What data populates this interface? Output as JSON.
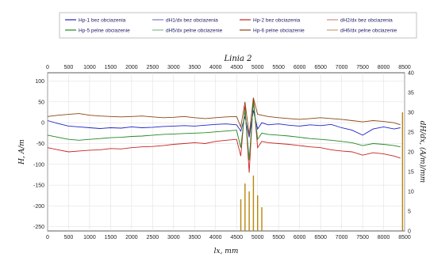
{
  "chart_data": {
    "type": "line",
    "title": "Linia 2",
    "xlabel": "lx, mm",
    "ylabel_left": "H, A/m",
    "ylabel_right": "dH/dx, (A/m)/mm",
    "xlim": [
      0,
      8500
    ],
    "ylim_left": [
      -260,
      120
    ],
    "ylim_right": [
      0,
      40
    ],
    "x_ticks": [
      0,
      500,
      1000,
      1500,
      2000,
      2500,
      3000,
      3500,
      4000,
      4500,
      5000,
      5500,
      6000,
      6500,
      7000,
      7500,
      8000,
      8500
    ],
    "y_ticks_left": [
      100,
      50,
      0,
      -50,
      -100,
      -150,
      -200,
      -250
    ],
    "y_ticks_right": [
      40,
      35,
      30,
      25,
      20,
      15,
      10,
      5,
      0
    ],
    "grid": true,
    "legend_position": "top",
    "legend": [
      {
        "name": "Hp-1 bez obciazenia",
        "color": "#2222cc"
      },
      {
        "name": "dH1/dx bez obciazenia",
        "color": "#7777dd"
      },
      {
        "name": "Hp-2 bez obciazenia",
        "color": "#cc2222"
      },
      {
        "name": "dH2/dx bez obciazenia",
        "color": "#dd8888"
      },
      {
        "name": "Hp-5 pelne obciazenie",
        "color": "#228822"
      },
      {
        "name": "dH5/dx pelne obciazenie",
        "color": "#88bb88"
      },
      {
        "name": "Hp-6 pelne obciazenie",
        "color": "#8b4513"
      },
      {
        "name": "dH6/dx pelne obciazenie",
        "color": "#c8a070"
      }
    ],
    "series": [
      {
        "name": "Hp-1 bez obciazenia",
        "color": "#2222cc",
        "axis": "left",
        "x": [
          0,
          250,
          500,
          750,
          1000,
          1250,
          1500,
          1750,
          2000,
          2250,
          2500,
          2750,
          3000,
          3250,
          3500,
          3750,
          4000,
          4250,
          4500,
          4600,
          4700,
          4800,
          4900,
          5000,
          5100,
          5250,
          5500,
          5750,
          6000,
          6250,
          6500,
          6750,
          7000,
          7250,
          7500,
          7750,
          8000,
          8250,
          8400
        ],
        "y": [
          5,
          -2,
          -8,
          -10,
          -12,
          -14,
          -12,
          -13,
          -10,
          -12,
          -11,
          -9,
          -8,
          -7,
          -8,
          -6,
          -4,
          -3,
          -5,
          -20,
          15,
          -35,
          30,
          -15,
          0,
          -5,
          -3,
          -6,
          -8,
          -5,
          -7,
          -4,
          -12,
          -18,
          -30,
          -15,
          -10,
          -15,
          -12
        ]
      },
      {
        "name": "Hp-2 bez obciazenia",
        "color": "#cc2222",
        "axis": "left",
        "x": [
          0,
          250,
          500,
          750,
          1000,
          1250,
          1500,
          1750,
          2000,
          2250,
          2500,
          2750,
          3000,
          3250,
          3500,
          3750,
          4000,
          4250,
          4500,
          4600,
          4700,
          4800,
          4900,
          5000,
          5100,
          5250,
          5500,
          5750,
          6000,
          6250,
          6500,
          6750,
          7000,
          7250,
          7500,
          7750,
          8000,
          8250,
          8400
        ],
        "y": [
          -60,
          -65,
          -70,
          -68,
          -66,
          -65,
          -62,
          -63,
          -60,
          -58,
          -57,
          -55,
          -52,
          -50,
          -48,
          -50,
          -45,
          -42,
          -40,
          -80,
          40,
          -120,
          60,
          -60,
          -45,
          -48,
          -50,
          -52,
          -55,
          -58,
          -60,
          -65,
          -68,
          -70,
          -78,
          -72,
          -75,
          -80,
          -85
        ]
      },
      {
        "name": "Hp-5 pelne obciazenie",
        "color": "#228822",
        "axis": "left",
        "x": [
          0,
          250,
          500,
          750,
          1000,
          1250,
          1500,
          1750,
          2000,
          2250,
          2500,
          2750,
          3000,
          3250,
          3500,
          3750,
          4000,
          4250,
          4500,
          4600,
          4700,
          4800,
          4900,
          5000,
          5100,
          5250,
          5500,
          5750,
          6000,
          6250,
          6500,
          6750,
          7000,
          7250,
          7500,
          7750,
          8000,
          8250,
          8400
        ],
        "y": [
          -30,
          -35,
          -40,
          -42,
          -40,
          -38,
          -36,
          -35,
          -33,
          -32,
          -30,
          -28,
          -27,
          -26,
          -25,
          -24,
          -22,
          -20,
          -18,
          -60,
          30,
          -90,
          50,
          -40,
          -25,
          -28,
          -30,
          -32,
          -35,
          -38,
          -40,
          -42,
          -45,
          -48,
          -55,
          -50,
          -52,
          -55,
          -58
        ]
      },
      {
        "name": "Hp-6 pelne obciazenie",
        "color": "#8b4513",
        "axis": "left",
        "x": [
          0,
          250,
          500,
          750,
          1000,
          1250,
          1500,
          1750,
          2000,
          2250,
          2500,
          2750,
          3000,
          3250,
          3500,
          3750,
          4000,
          4250,
          4500,
          4600,
          4700,
          4800,
          4900,
          5000,
          5100,
          5250,
          5500,
          5750,
          6000,
          6250,
          6500,
          6750,
          7000,
          7250,
          7500,
          7750,
          8000,
          8250,
          8400
        ],
        "y": [
          15,
          18,
          20,
          22,
          18,
          16,
          15,
          14,
          15,
          16,
          14,
          12,
          13,
          15,
          12,
          10,
          12,
          14,
          15,
          -10,
          50,
          -30,
          60,
          20,
          18,
          15,
          12,
          10,
          8,
          10,
          12,
          10,
          8,
          5,
          2,
          5,
          3,
          0,
          -5
        ]
      }
    ],
    "spikes_right_axis": [
      {
        "x": 4600,
        "y": 8
      },
      {
        "x": 4700,
        "y": 12
      },
      {
        "x": 4800,
        "y": 10
      },
      {
        "x": 4900,
        "y": 14
      },
      {
        "x": 5000,
        "y": 9
      },
      {
        "x": 5100,
        "y": 6
      },
      {
        "x": 8450,
        "y": 30
      }
    ]
  }
}
